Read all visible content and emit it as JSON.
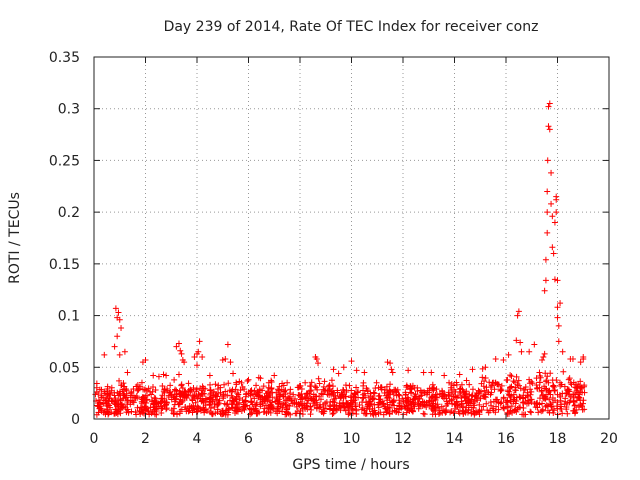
{
  "chart_data": {
    "type": "scatter",
    "title": "Day 239 of 2014, Rate Of TEC Index for receiver conz",
    "xlabel": "GPS time / hours",
    "ylabel": "ROTI / TECUs",
    "xlim": [
      0,
      20
    ],
    "ylim": [
      0,
      0.35
    ],
    "grid": true,
    "marker": "+",
    "color": "#ff0000",
    "x_ticks": [
      "0",
      "2",
      "4",
      "6",
      "8",
      "10",
      "12",
      "14",
      "16",
      "18",
      "20"
    ],
    "y_ticks": [
      "0",
      "0.05",
      "0.1",
      "0.15",
      "0.2",
      "0.25",
      "0.3",
      "0.35"
    ],
    "series": [
      {
        "name": "ROTI",
        "x": [
          0.4,
          0.8,
          0.85,
          0.9,
          0.95,
          1.0,
          1.05,
          0.9,
          1.0,
          1.2,
          1.3,
          1.9,
          2.0,
          2.3,
          2.7,
          2.8,
          3.2,
          3.3,
          3.35,
          3.4,
          3.45,
          3.5,
          3.3,
          3.9,
          4.0,
          4.05,
          4.1,
          4.2,
          4.0,
          4.5,
          5.0,
          5.1,
          5.2,
          5.3,
          5.4,
          6.0,
          6.4,
          7.0,
          7.5,
          8.2,
          8.6,
          8.65,
          8.7,
          9.3,
          9.5,
          9.7,
          10.0,
          10.2,
          10.5,
          11.4,
          11.5,
          11.55,
          11.6,
          12.2,
          12.8,
          13.1,
          13.6,
          14.2,
          14.7,
          15.2,
          15.6,
          15.9,
          16.1,
          16.4,
          16.45,
          16.5,
          16.55,
          16.6,
          16.9,
          17.1,
          17.3,
          17.4,
          17.45,
          17.5,
          17.5,
          17.55,
          17.55,
          17.6,
          17.6,
          17.6,
          17.62,
          17.65,
          17.65,
          17.7,
          17.7,
          17.75,
          17.75,
          17.8,
          17.8,
          17.85,
          17.9,
          17.9,
          17.95,
          17.95,
          17.95,
          18.0,
          18.0,
          18.0,
          18.05,
          18.05,
          18.1,
          18.2,
          18.5,
          18.6,
          18.9,
          19.0,
          19.0
        ],
        "values": [
          0.062,
          0.07,
          0.107,
          0.098,
          0.103,
          0.096,
          0.088,
          0.08,
          0.062,
          0.065,
          0.045,
          0.055,
          0.057,
          0.042,
          0.043,
          0.042,
          0.07,
          0.073,
          0.066,
          0.063,
          0.057,
          0.055,
          0.043,
          0.06,
          0.063,
          0.065,
          0.075,
          0.06,
          0.052,
          0.042,
          0.057,
          0.058,
          0.072,
          0.055,
          0.044,
          0.038,
          0.04,
          0.042,
          0.035,
          0.035,
          0.06,
          0.058,
          0.054,
          0.048,
          0.044,
          0.05,
          0.056,
          0.047,
          0.045,
          0.055,
          0.054,
          0.048,
          0.045,
          0.047,
          0.045,
          0.045,
          0.042,
          0.043,
          0.048,
          0.05,
          0.058,
          0.057,
          0.062,
          0.076,
          0.1,
          0.104,
          0.074,
          0.065,
          0.065,
          0.072,
          0.045,
          0.057,
          0.06,
          0.063,
          0.124,
          0.134,
          0.154,
          0.18,
          0.2,
          0.22,
          0.25,
          0.283,
          0.302,
          0.305,
          0.28,
          0.208,
          0.238,
          0.196,
          0.166,
          0.16,
          0.135,
          0.19,
          0.2,
          0.212,
          0.215,
          0.134,
          0.108,
          0.098,
          0.075,
          0.09,
          0.112,
          0.065,
          0.058,
          0.058,
          0.055,
          0.06,
          0.058
        ]
      }
    ]
  }
}
